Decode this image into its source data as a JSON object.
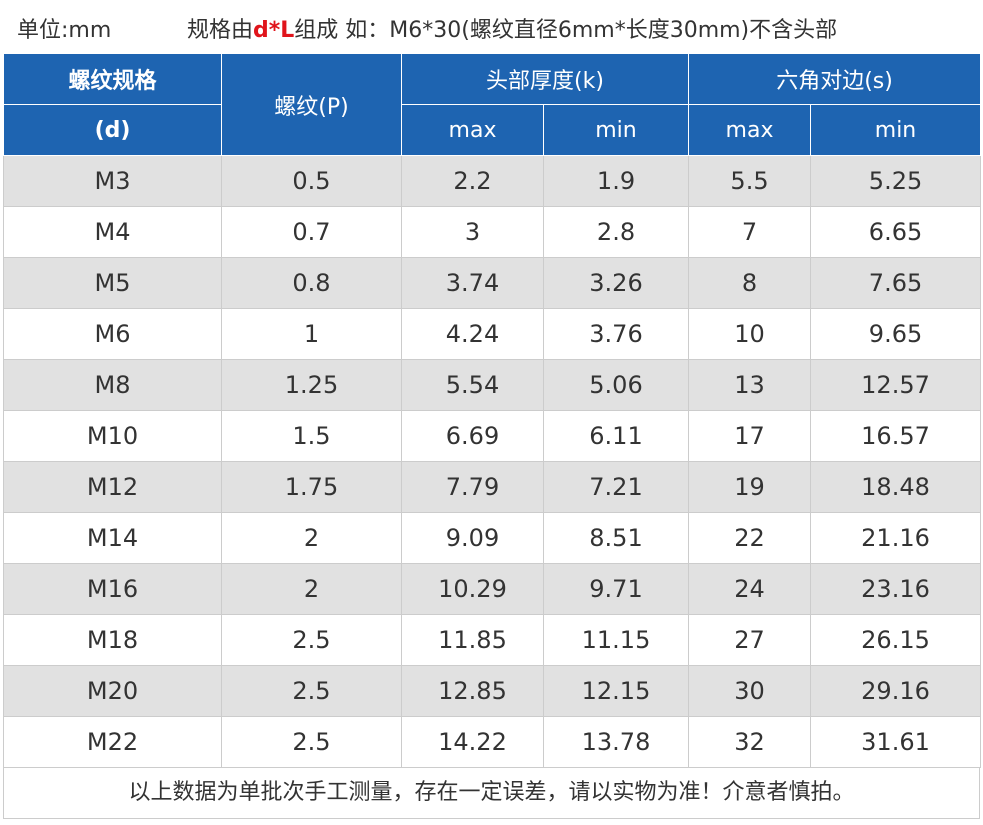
{
  "header": {
    "unit": "单位:mm",
    "spec_prefix": "规格由",
    "spec_highlight": "d*L",
    "spec_suffix": "组成 如：M6*30(螺纹直径6mm*长度30mm)不含头部",
    "highlight_color": "#e0141b"
  },
  "table": {
    "col1_line1": "螺纹规格",
    "col1_line2": "(d)",
    "col2": "螺纹(P)",
    "group1": "头部厚度(k)",
    "group2": "六角对边(s)",
    "sub_max": "max",
    "sub_min": "min",
    "header_color": "#1e64b1",
    "rows": [
      [
        "M3",
        "0.5",
        "2.2",
        "1.9",
        "5.5",
        "5.25"
      ],
      [
        "M4",
        "0.7",
        "3",
        "2.8",
        "7",
        "6.65"
      ],
      [
        "M5",
        "0.8",
        "3.74",
        "3.26",
        "8",
        "7.65"
      ],
      [
        "M6",
        "1",
        "4.24",
        "3.76",
        "10",
        "9.65"
      ],
      [
        "M8",
        "1.25",
        "5.54",
        "5.06",
        "13",
        "12.57"
      ],
      [
        "M10",
        "1.5",
        "6.69",
        "6.11",
        "17",
        "16.57"
      ],
      [
        "M12",
        "1.75",
        "7.79",
        "7.21",
        "19",
        "18.48"
      ],
      [
        "M14",
        "2",
        "9.09",
        "8.51",
        "22",
        "21.16"
      ],
      [
        "M16",
        "2",
        "10.29",
        "9.71",
        "24",
        "23.16"
      ],
      [
        "M18",
        "2.5",
        "11.85",
        "11.15",
        "27",
        "26.15"
      ],
      [
        "M20",
        "2.5",
        "12.85",
        "12.15",
        "30",
        "29.16"
      ],
      [
        "M22",
        "2.5",
        "14.22",
        "13.78",
        "32",
        "31.61"
      ]
    ]
  },
  "footer": "以上数据为单批次手工测量，存在一定误差，请以实物为准！介意者慎拍。"
}
